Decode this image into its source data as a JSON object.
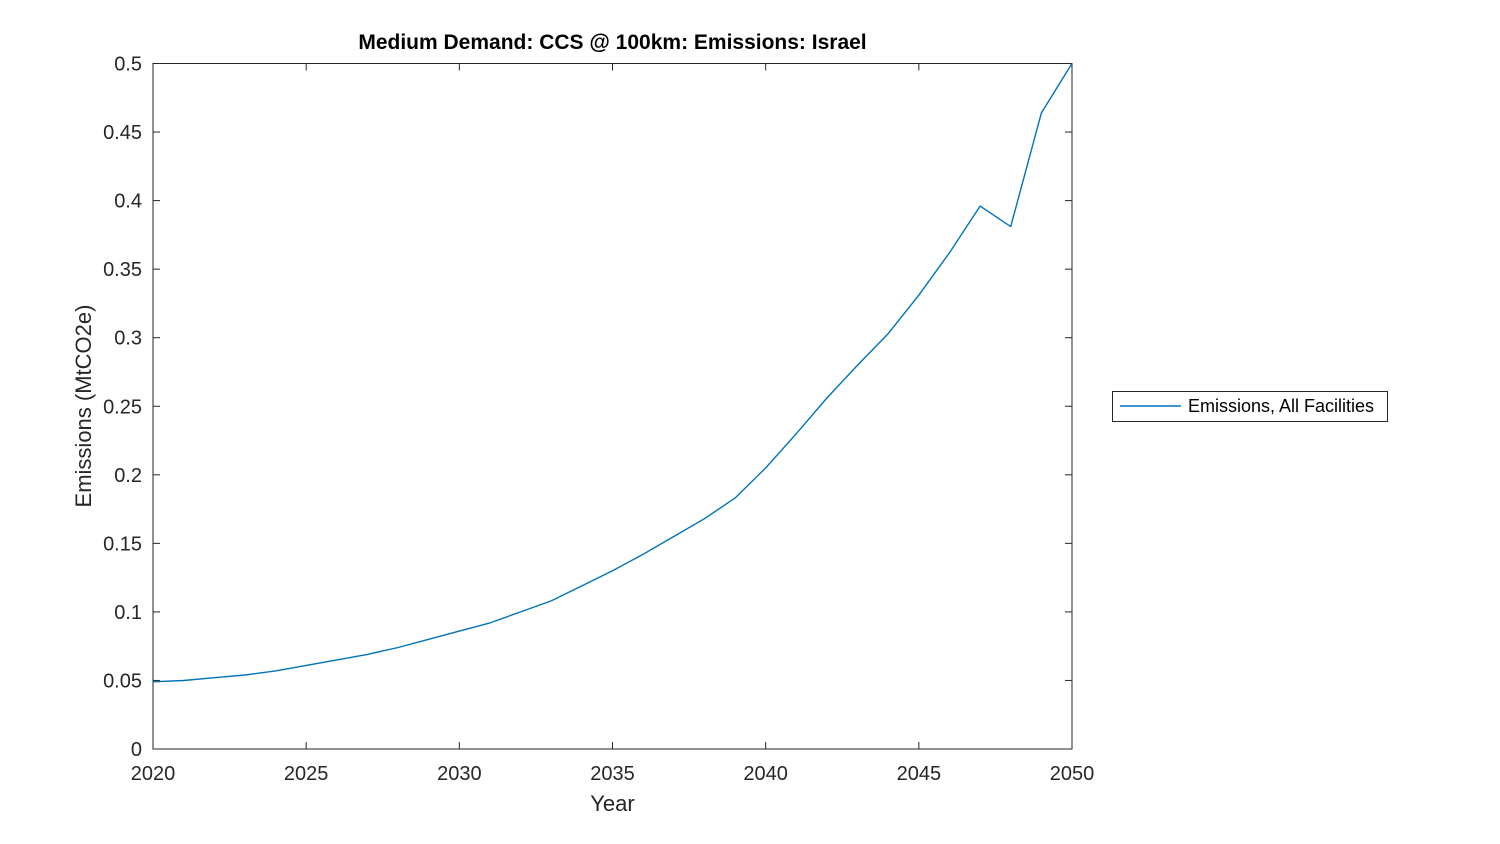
{
  "chart_data": {
    "type": "line",
    "title": "Medium Demand: CCS @ 100km: Emissions: Israel",
    "xlabel": "Year",
    "ylabel": "Emissions (MtCO2e)",
    "xlim": [
      2020,
      2050
    ],
    "ylim": [
      0,
      0.5
    ],
    "x_tick_labels": [
      "2020",
      "2025",
      "2030",
      "2035",
      "2040",
      "2045",
      "2050"
    ],
    "x_tick_values": [
      2020,
      2025,
      2030,
      2035,
      2040,
      2045,
      2050
    ],
    "y_tick_labels": [
      "0",
      "0.05",
      "0.1",
      "0.15",
      "0.2",
      "0.25",
      "0.3",
      "0.35",
      "0.4",
      "0.45",
      "0.5"
    ],
    "y_tick_values": [
      0,
      0.05,
      0.1,
      0.15,
      0.2,
      0.25,
      0.3,
      0.35,
      0.4,
      0.45,
      0.5
    ],
    "grid": false,
    "legend_position": "outside-right",
    "colors": {
      "line": "#0072BD",
      "axis": "#262626",
      "title_text": "#000000"
    },
    "series": [
      {
        "name": "Emissions, All Facilities",
        "x": [
          2020,
          2021,
          2022,
          2023,
          2024,
          2025,
          2026,
          2027,
          2028,
          2029,
          2030,
          2031,
          2032,
          2033,
          2034,
          2035,
          2036,
          2037,
          2038,
          2039,
          2040,
          2041,
          2042,
          2043,
          2044,
          2045,
          2046,
          2047,
          2048,
          2049,
          2050
        ],
        "values": [
          0.049,
          0.05,
          0.052,
          0.054,
          0.057,
          0.061,
          0.065,
          0.069,
          0.074,
          0.08,
          0.086,
          0.092,
          0.1,
          0.108,
          0.119,
          0.13,
          0.142,
          0.155,
          0.168,
          0.183,
          0.205,
          0.23,
          0.256,
          0.28,
          0.303,
          0.331,
          0.362,
          0.396,
          0.381,
          0.464,
          0.5
        ]
      }
    ]
  }
}
